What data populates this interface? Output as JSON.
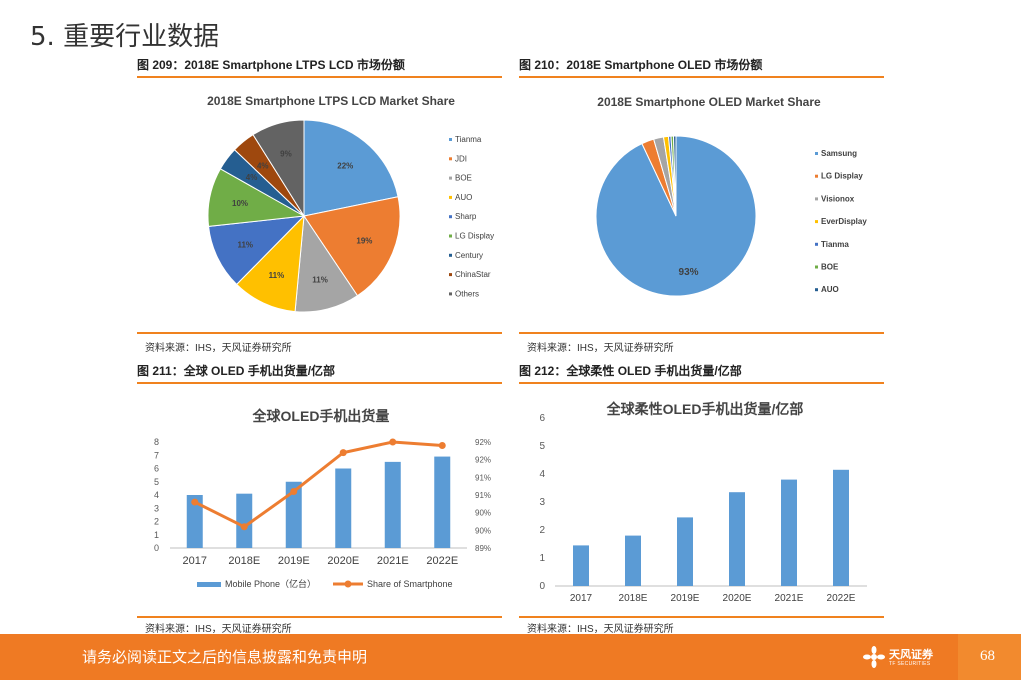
{
  "section_title": "5. 重要行业数据",
  "panels": [
    {
      "caption": "图 209：2018E Smartphone LTPS LCD 市场份额",
      "source": "资料来源：IHS，天风证券研究所"
    },
    {
      "caption": "图 210：2018E Smartphone OLED 市场份额",
      "source": "资料来源：IHS，天风证券研究所"
    },
    {
      "caption": "图 211：全球 OLED 手机出货量/亿部",
      "source": "资料来源：IHS，天风证券研究所"
    },
    {
      "caption": "图 212：全球柔性 OLED 手机出货量/亿部",
      "source": "资料来源：IHS，天风证券研究所"
    }
  ],
  "chart_data": [
    {
      "type": "pie",
      "title": "2018E Smartphone LTPS LCD Market Share",
      "labels": [
        "Tianma",
        "JDI",
        "BOE",
        "AUO",
        "Sharp",
        "LG Display",
        "Century",
        "ChinaStar",
        "Others"
      ],
      "values": [
        22,
        19,
        11,
        11,
        11,
        10,
        4,
        4,
        9
      ],
      "data_labels": [
        "22%",
        "19%",
        "11%",
        "11%",
        "11%",
        "10%",
        "4%",
        "4%",
        "9%"
      ],
      "colors": [
        "#5b9bd5",
        "#ed7d31",
        "#a5a5a5",
        "#ffc000",
        "#4472c4",
        "#70ad47",
        "#255e91",
        "#9e480e",
        "#636363"
      ],
      "legend_position": "right"
    },
    {
      "type": "pie",
      "title": "2018E Smartphone OLED Market Share",
      "labels": [
        "Samsung",
        "LG Display",
        "Visionox",
        "EverDisplay",
        "Tianma",
        "BOE",
        "AUO"
      ],
      "values": [
        93,
        2.5,
        2,
        1,
        0.5,
        0.5,
        0.5
      ],
      "data_labels": [
        "93%"
      ],
      "colors": [
        "#5b9bd5",
        "#ed7d31",
        "#a5a5a5",
        "#ffc000",
        "#4472c4",
        "#70ad47",
        "#255e91"
      ],
      "legend_position": "right"
    },
    {
      "type": "bar",
      "title": "全球OLED手机出货量",
      "categories": [
        "2017",
        "2018E",
        "2019E",
        "2020E",
        "2021E",
        "2022E"
      ],
      "series": [
        {
          "name": "Mobile Phone（亿台）",
          "type": "bar",
          "values": [
            4,
            4.1,
            5,
            6,
            6.5,
            6.9
          ],
          "color": "#5b9bd5"
        },
        {
          "name": "Share of Smartphone",
          "type": "line",
          "axis": "right",
          "values": [
            90.3,
            89.6,
            90.6,
            91.7,
            92.0,
            91.9
          ],
          "color": "#ed7d31"
        }
      ],
      "ylim": [
        0,
        8
      ],
      "yticks": [
        "0",
        "1",
        "2",
        "3",
        "4",
        "5",
        "6",
        "7",
        "8"
      ],
      "y2lim": [
        89,
        92
      ],
      "y2ticks": [
        "89%",
        "90%",
        "90%",
        "91%",
        "91%",
        "92%",
        "92%"
      ],
      "grid": false,
      "legend_position": "bottom"
    },
    {
      "type": "bar",
      "title": "全球柔性OLED手机出货量/亿部",
      "categories": [
        "2017",
        "2018E",
        "2019E",
        "2020E",
        "2021E",
        "2022E"
      ],
      "values": [
        1.45,
        1.8,
        2.45,
        3.35,
        3.8,
        4.15
      ],
      "ylim": [
        0,
        6
      ],
      "yticks": [
        "0",
        "1",
        "2",
        "3",
        "4",
        "5",
        "6"
      ],
      "color": "#5b9bd5",
      "grid": false
    }
  ],
  "footer": {
    "disclaimer": "请务必阅读正文之后的信息披露和免责申明",
    "logo_name": "天风证券",
    "logo_sub": "TF SECURITIES",
    "page_number": "68"
  }
}
